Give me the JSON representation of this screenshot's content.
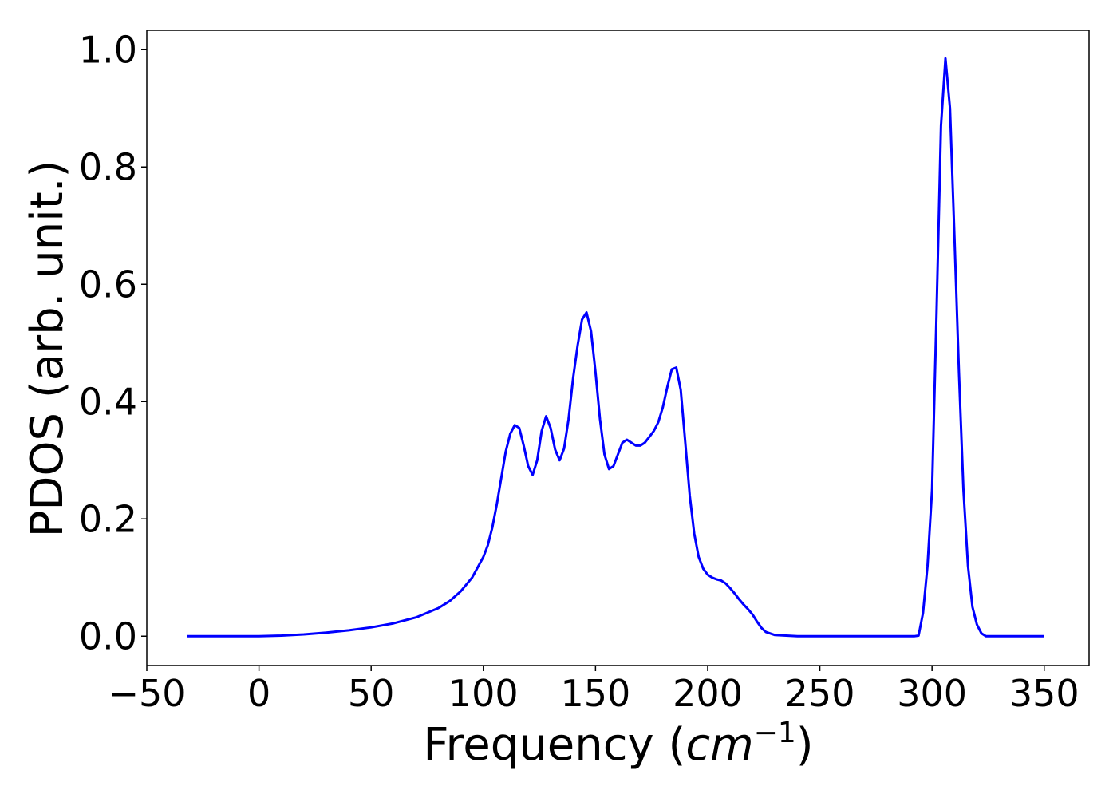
{
  "chart_data": {
    "type": "line",
    "title": "",
    "xlabel_text": "Frequency (",
    "xlabel_unit": "cm",
    "xlabel_exp": "−1",
    "xlabel_close": ")",
    "ylabel": "PDOS (arb. unit.)",
    "xlim": [
      -50,
      370
    ],
    "ylim": [
      -0.05,
      1.033
    ],
    "xticks": [
      -50,
      0,
      50,
      100,
      150,
      200,
      250,
      300,
      350
    ],
    "xtick_labels": [
      "−50",
      "0",
      "50",
      "100",
      "150",
      "200",
      "250",
      "300",
      "350"
    ],
    "yticks": [
      0.0,
      0.2,
      0.4,
      0.6,
      0.8,
      1.0
    ],
    "ytick_labels": [
      "0.0",
      "0.2",
      "0.4",
      "0.6",
      "0.8",
      "1.0"
    ],
    "grid": false,
    "line_color": "#0000ff",
    "series": [
      {
        "x": [
          -32,
          -20,
          0,
          10,
          20,
          30,
          40,
          50,
          60,
          70,
          75,
          80,
          85,
          90,
          95,
          100,
          102,
          104,
          106,
          108,
          110,
          112,
          114,
          116,
          118,
          120,
          122,
          124,
          126,
          128,
          130,
          132,
          134,
          136,
          138,
          140,
          142,
          144,
          146,
          148,
          150,
          152,
          154,
          156,
          158,
          160,
          162,
          164,
          166,
          168,
          170,
          172,
          174,
          176,
          178,
          180,
          182,
          184,
          186,
          188,
          190,
          192,
          194,
          196,
          198,
          200,
          202,
          204,
          206,
          208,
          210,
          212,
          214,
          216,
          218,
          220,
          222,
          224,
          226,
          230,
          240,
          250,
          260,
          270,
          280,
          288,
          290,
          292,
          294,
          296,
          298,
          300,
          302,
          304,
          306,
          308,
          310,
          312,
          314,
          316,
          318,
          320,
          322,
          324,
          326,
          330,
          340,
          350
        ],
        "y": [
          0.0,
          0.0,
          0.0,
          0.001,
          0.003,
          0.006,
          0.01,
          0.015,
          0.022,
          0.032,
          0.04,
          0.048,
          0.06,
          0.077,
          0.1,
          0.135,
          0.155,
          0.185,
          0.225,
          0.27,
          0.315,
          0.345,
          0.36,
          0.355,
          0.325,
          0.29,
          0.275,
          0.3,
          0.35,
          0.375,
          0.355,
          0.318,
          0.3,
          0.32,
          0.37,
          0.44,
          0.495,
          0.54,
          0.552,
          0.52,
          0.45,
          0.37,
          0.31,
          0.285,
          0.29,
          0.31,
          0.33,
          0.335,
          0.33,
          0.325,
          0.325,
          0.33,
          0.34,
          0.35,
          0.365,
          0.39,
          0.425,
          0.455,
          0.458,
          0.42,
          0.33,
          0.24,
          0.175,
          0.135,
          0.115,
          0.105,
          0.1,
          0.097,
          0.095,
          0.09,
          0.082,
          0.073,
          0.063,
          0.054,
          0.046,
          0.037,
          0.025,
          0.014,
          0.007,
          0.002,
          0.0,
          0.0,
          0.0,
          0.0,
          0.0,
          0.0,
          0.0,
          0.0,
          0.001,
          0.04,
          0.12,
          0.25,
          0.55,
          0.87,
          0.985,
          0.9,
          0.68,
          0.45,
          0.25,
          0.12,
          0.05,
          0.02,
          0.005,
          0.0,
          0.0,
          0.0,
          0.0,
          0.0
        ]
      }
    ]
  }
}
